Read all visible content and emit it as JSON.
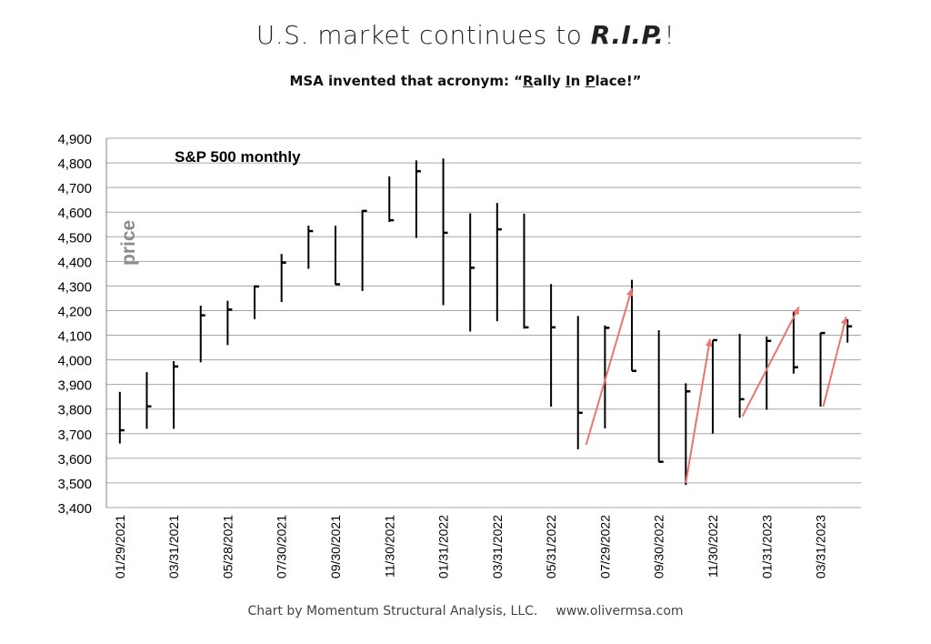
{
  "title": {
    "prefix": "U.S. market continues to ",
    "emphasis": "R.I.P.",
    "suffix": "!"
  },
  "subtitle": {
    "prefix": "MSA invented that acronym: “",
    "r1": "R",
    "r2": "ally ",
    "i1": "I",
    "i2": "n ",
    "p1": "P",
    "p2": "lace!”"
  },
  "footer": {
    "credit": "Chart by Momentum Structural Analysis, LLC.",
    "url": "www.olivermsa.com"
  },
  "chart_data": {
    "type": "ohlc",
    "title": "S&P 500 monthly",
    "ylabel": "price",
    "ylim": [
      3400,
      4900
    ],
    "yticks": [
      "3,400",
      "3,500",
      "3,600",
      "3,700",
      "3,800",
      "3,900",
      "4,000",
      "4,100",
      "4,200",
      "4,300",
      "4,400",
      "4,500",
      "4,600",
      "4,700",
      "4,800",
      "4,900"
    ],
    "x_labels": [
      "01/29/2021",
      "",
      "03/31/2021",
      "",
      "05/28/2021",
      "",
      "07/30/2021",
      "",
      "09/30/2021",
      "",
      "11/30/2021",
      "",
      "01/31/2022",
      "",
      "03/31/2022",
      "",
      "05/31/2022",
      "",
      "07/29/2022",
      "",
      "09/30/2022",
      "",
      "11/30/2022",
      "",
      "01/31/2023",
      "",
      "03/31/2023",
      ""
    ],
    "bars": [
      {
        "high": 3870,
        "low": 3660,
        "close": 3714
      },
      {
        "high": 3950,
        "low": 3720,
        "close": 3811
      },
      {
        "high": 3995,
        "low": 3720,
        "close": 3973
      },
      {
        "high": 4220,
        "low": 3990,
        "close": 4181
      },
      {
        "high": 4240,
        "low": 4060,
        "close": 4204
      },
      {
        "high": 4302,
        "low": 4165,
        "close": 4298
      },
      {
        "high": 4430,
        "low": 4235,
        "close": 4395
      },
      {
        "high": 4545,
        "low": 4370,
        "close": 4523
      },
      {
        "high": 4545,
        "low": 4305,
        "close": 4307
      },
      {
        "high": 4608,
        "low": 4280,
        "close": 4605
      },
      {
        "high": 4745,
        "low": 4560,
        "close": 4567
      },
      {
        "high": 4810,
        "low": 4495,
        "close": 4766
      },
      {
        "high": 4818,
        "low": 4222,
        "close": 4516
      },
      {
        "high": 4595,
        "low": 4115,
        "close": 4374
      },
      {
        "high": 4637,
        "low": 4157,
        "close": 4530
      },
      {
        "high": 4594,
        "low": 4127,
        "close": 4132
      },
      {
        "high": 4308,
        "low": 3810,
        "close": 4132
      },
      {
        "high": 4178,
        "low": 3637,
        "close": 3785
      },
      {
        "high": 4140,
        "low": 3722,
        "close": 4130
      },
      {
        "high": 4325,
        "low": 3955,
        "close": 3955
      },
      {
        "high": 4120,
        "low": 3585,
        "close": 3586
      },
      {
        "high": 3905,
        "low": 3492,
        "close": 3872
      },
      {
        "high": 4080,
        "low": 3700,
        "close": 4080
      },
      {
        "high": 4105,
        "low": 3765,
        "close": 3840
      },
      {
        "high": 4095,
        "low": 3797,
        "close": 4077
      },
      {
        "high": 4195,
        "low": 3944,
        "close": 3970
      },
      {
        "high": 4110,
        "low": 3810,
        "close": 4109
      },
      {
        "high": 4165,
        "low": 4070,
        "close": 4136
      }
    ],
    "rally_arrows": [
      {
        "from": [
          17.3,
          3655
        ],
        "to": [
          19.0,
          4290
        ]
      },
      {
        "from": [
          21.0,
          3500
        ],
        "to": [
          21.9,
          4085
        ]
      },
      {
        "from": [
          23.1,
          3770
        ],
        "to": [
          25.2,
          4215
        ]
      },
      {
        "from": [
          26.1,
          3810
        ],
        "to": [
          26.95,
          4175
        ]
      }
    ],
    "colors": {
      "bar": "#000000",
      "grid": "#a6a6a6",
      "arrow": "#e8756f",
      "ylabel": "#8c8c8c"
    },
    "grid": true
  }
}
